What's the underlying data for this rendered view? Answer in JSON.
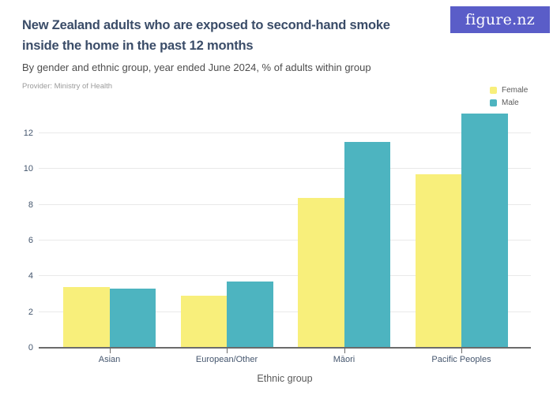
{
  "header": {
    "title_line1": "New Zealand adults who are exposed to second-hand smoke",
    "title_line2": "inside the home in the past 12 months",
    "subtitle": "By gender and ethnic group, year ended June 2024, % of adults within group",
    "provider": "Provider: Ministry of Health"
  },
  "brand": {
    "logo_text": "figure.nz",
    "logo_background": "#5a5dc8",
    "logo_text_color": "#ffffff"
  },
  "legend": {
    "position": "top-right",
    "items": [
      {
        "label": "Female",
        "color": "#f8ef7b"
      },
      {
        "label": "Male",
        "color": "#4db4c0"
      }
    ]
  },
  "chart_data": {
    "type": "bar",
    "title": "New Zealand adults who are exposed to second-hand smoke inside the home in the past 12 months",
    "subtitle": "By gender and ethnic group, year ended June 2024, % of adults within group",
    "provider": "Provider: Ministry of Health",
    "categories": [
      "Asian",
      "European/Other",
      "Māori",
      "Pacific Peoples"
    ],
    "series": [
      {
        "name": "Female",
        "color": "#f8ef7b",
        "values": [
          3.4,
          2.9,
          8.4,
          9.7
        ]
      },
      {
        "name": "Male",
        "color": "#4db4c0",
        "values": [
          3.3,
          3.7,
          11.5,
          13.1
        ]
      }
    ],
    "xlabel": "Ethnic group",
    "ylabel": "",
    "unit": "% of adults within group",
    "ylim": [
      0,
      13.1
    ],
    "y_ticks": [
      0,
      2,
      4,
      6,
      8,
      10,
      12
    ],
    "grid": "horizontal",
    "legend_position": "top-right"
  }
}
